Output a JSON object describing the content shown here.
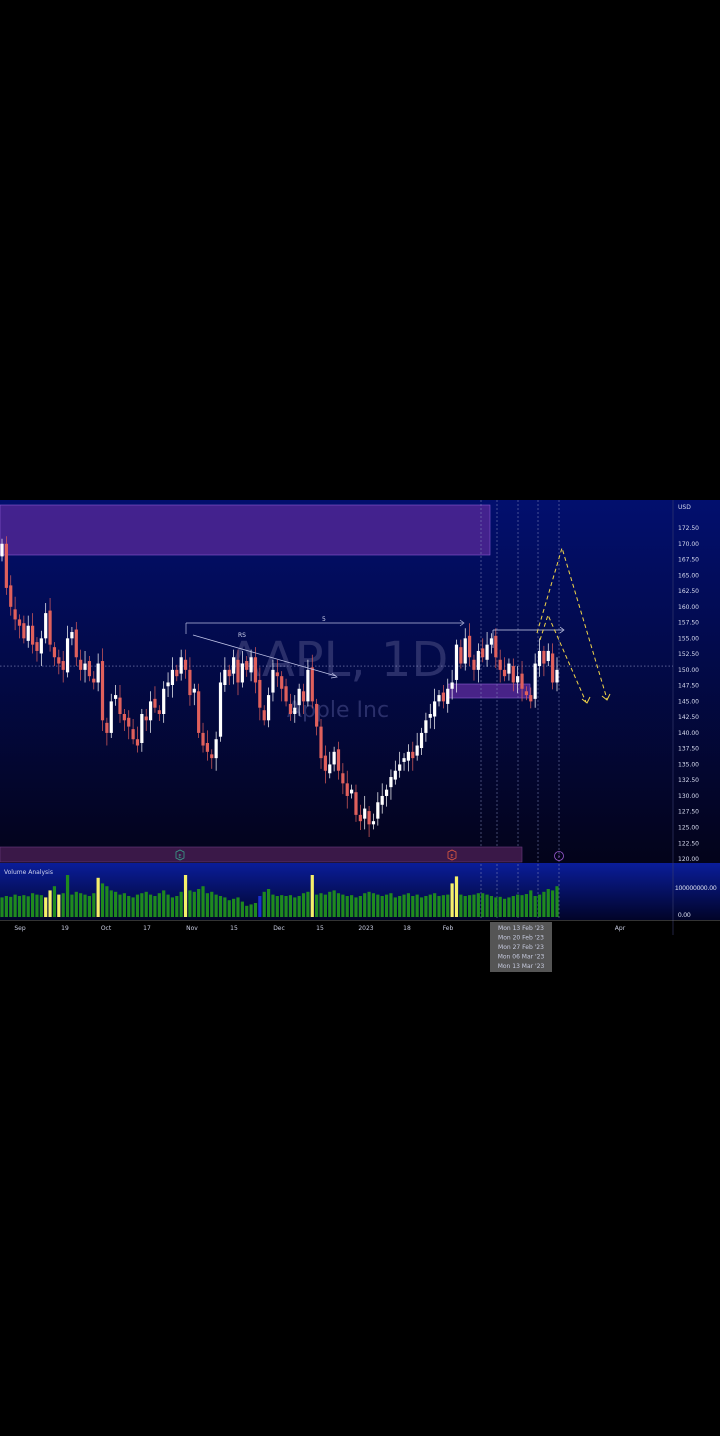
{
  "chart_data": {
    "type": "candlestick",
    "symbol": "AAPL",
    "interval": "1D",
    "description": "Apple Inc",
    "currency": "USD",
    "y_ticks": [
      "172.50",
      "170.00",
      "167.50",
      "165.00",
      "162.50",
      "160.00",
      "157.50",
      "155.00",
      "152.50",
      "150.00",
      "147.50",
      "145.00",
      "142.50",
      "140.00",
      "137.50",
      "135.00",
      "132.50",
      "130.00",
      "127.50",
      "125.00",
      "122.50",
      "120.00"
    ],
    "ylim": [
      120,
      172.5
    ],
    "x_ticks": [
      "Sep",
      "19",
      "Oct",
      "17",
      "Nov",
      "15",
      "Dec",
      "15",
      "2023",
      "18",
      "Feb",
      "Apr"
    ],
    "x_highlight_labels": [
      "Mon 13 Feb '23",
      "Mon 20 Feb '23",
      "Mon 27 Feb '23",
      "Mon 06 Mar '23",
      "Mon 13 Mar '23"
    ],
    "closes": [
      170,
      163,
      160,
      158,
      157,
      155,
      157,
      154,
      153,
      155,
      159,
      154,
      152,
      151,
      150,
      155,
      156,
      152,
      150,
      151,
      149,
      148,
      151,
      142,
      140,
      145,
      146,
      143,
      142,
      141,
      139,
      138,
      143,
      142,
      145,
      144,
      143,
      147,
      148,
      150,
      149,
      152,
      150,
      146,
      147,
      140,
      138,
      137,
      136,
      139,
      148,
      150,
      149,
      152,
      148,
      151,
      150,
      152,
      148,
      144,
      142,
      146,
      150,
      149,
      147,
      145,
      143,
      144,
      147,
      145,
      150,
      145,
      141,
      136,
      134,
      135,
      137,
      134,
      132,
      130,
      131,
      127,
      126,
      128,
      125.5,
      126,
      129,
      130,
      131,
      133,
      134,
      135,
      136,
      137,
      136,
      138,
      140,
      142,
      143,
      145,
      146,
      145,
      147,
      148,
      154,
      151,
      155,
      152,
      150,
      153,
      152,
      154,
      155,
      152,
      150,
      149,
      151,
      148,
      149,
      147,
      146,
      145,
      151,
      153,
      151,
      153,
      148,
      150
    ],
    "last_price_line": 150.6,
    "volume": {
      "title": "Volume Analysis",
      "axis_labels": [
        "100000000.00",
        "0.00"
      ],
      "values_millions": [
        70,
        75,
        72,
        80,
        75,
        78,
        74,
        85,
        80,
        78,
        70,
        95,
        110,
        80,
        85,
        150,
        80,
        90,
        85,
        80,
        75,
        85,
        140,
        120,
        110,
        95,
        90,
        80,
        85,
        75,
        70,
        80,
        85,
        90,
        80,
        75,
        85,
        95,
        80,
        70,
        75,
        90,
        150,
        95,
        90,
        100,
        110,
        85,
        90,
        80,
        75,
        70,
        60,
        65,
        70,
        55,
        40,
        45,
        50,
        75,
        90,
        100,
        80,
        75,
        78,
        75,
        78,
        70,
        75,
        85,
        90,
        150,
        80,
        85,
        80,
        90,
        95,
        85,
        80,
        75,
        78,
        70,
        75,
        85,
        90,
        85,
        80,
        75,
        80,
        85,
        70,
        75,
        80,
        85,
        75,
        80,
        70,
        75,
        80,
        85,
        75,
        78,
        80,
        120,
        145,
        80,
        75,
        78,
        80,
        85,
        85,
        80,
        75,
        70,
        72,
        65,
        70,
        75,
        80,
        78,
        82,
        95,
        75,
        80,
        90,
        100,
        95,
        110
      ],
      "highlight_indices": [
        10,
        11,
        13,
        22,
        42,
        71,
        103,
        104
      ],
      "low_volume_indices": [
        59
      ],
      "colors": {
        "normal": "#1f8a1f",
        "high": "#f5f06a",
        "low": "#1a2fd0"
      }
    },
    "annotations": {
      "range_label": "5",
      "trendline_label": "RS",
      "events": [
        "E",
        "E",
        "⚡"
      ]
    },
    "colors": {
      "up": "#ffffff",
      "down": "#e0605c",
      "zone": "#5a2a9a",
      "projection": "#f2d548"
    }
  }
}
